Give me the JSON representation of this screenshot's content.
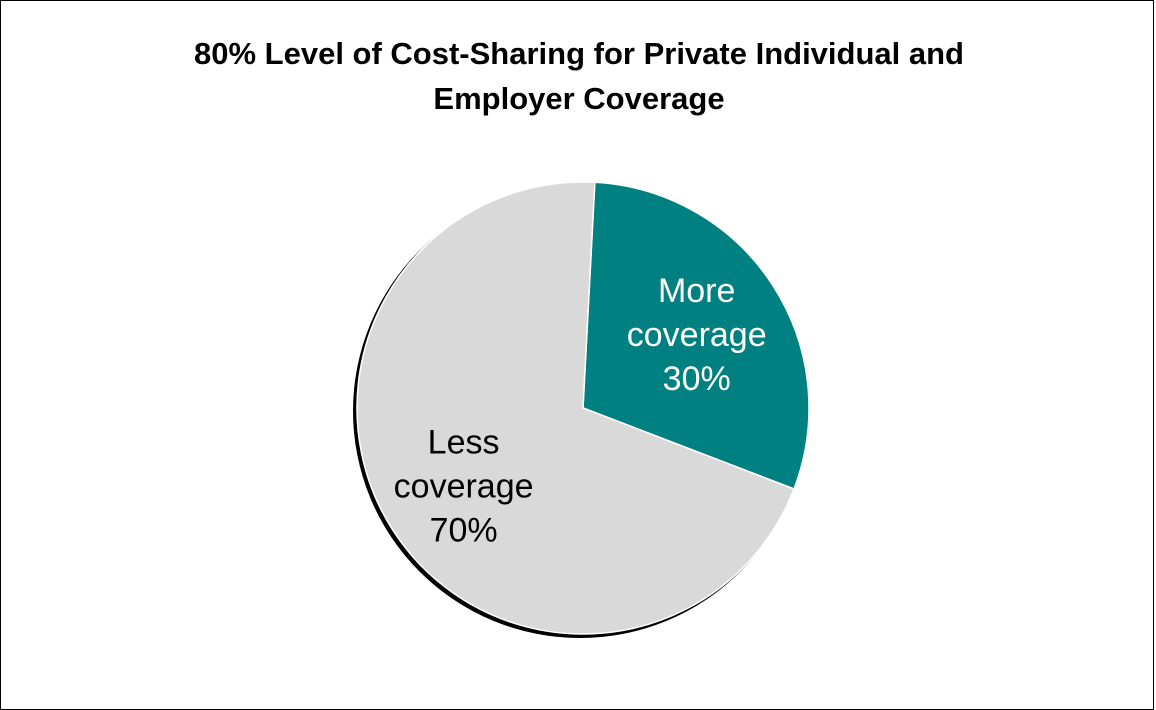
{
  "chart_data": {
    "type": "pie",
    "title": "80% Level of Cost-Sharing for Private Individual and Employer Coverage",
    "title_lines": [
      "80% Level of Cost-Sharing for Private Individual and",
      "Employer Coverage"
    ],
    "slices": [
      {
        "name": "More coverage",
        "value": 30,
        "label_lines": [
          "More",
          "coverage",
          "30%"
        ],
        "color": "#008080",
        "text_color": "#ffffff"
      },
      {
        "name": "Less coverage",
        "value": 70,
        "label_lines": [
          "Less",
          "coverage",
          "70%"
        ],
        "color": "#d9d9d9",
        "text_color": "#000000"
      }
    ],
    "start_angle_deg": 3,
    "direction": "clockwise",
    "legend": "none"
  }
}
